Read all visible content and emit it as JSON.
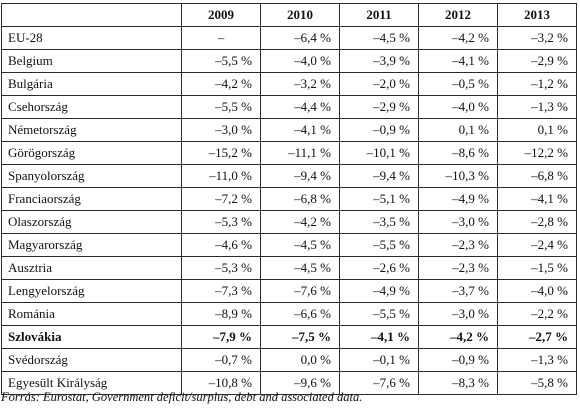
{
  "table": {
    "header": [
      "",
      "2009",
      "2010",
      "2011",
      "2012",
      "2013"
    ],
    "rows": [
      {
        "country": "EU-28",
        "values": [
          "–",
          "–6,4 %",
          "–4,5 %",
          "–4,2 %",
          "–3,2 %"
        ],
        "bold": false
      },
      {
        "country": "Belgium",
        "values": [
          "–5,5 %",
          "–4,0 %",
          "–3,9 %",
          "–4,1 %",
          "–2,9 %"
        ],
        "bold": false
      },
      {
        "country": "Bulgária",
        "values": [
          "–4,2 %",
          "–3,2 %",
          "–2,0 %",
          "–0,5 %",
          "–1,2 %"
        ],
        "bold": false
      },
      {
        "country": "Csehország",
        "values": [
          "–5,5 %",
          "–4,4 %",
          "–2,9 %",
          "–4,0 %",
          "–1,3 %"
        ],
        "bold": false
      },
      {
        "country": "Németország",
        "values": [
          "–3,0 %",
          "–4,1 %",
          "–0,9 %",
          "0,1 %",
          "0,1 %"
        ],
        "bold": false
      },
      {
        "country": "Görögország",
        "values": [
          "–15,2 %",
          "–11,1 %",
          "–10,1 %",
          "–8,6 %",
          "–12,2 %"
        ],
        "bold": false
      },
      {
        "country": "Spanyolország",
        "values": [
          "–11,0 %",
          "–9,4 %",
          "–9,4 %",
          "–10,3 %",
          "–6,8 %"
        ],
        "bold": false
      },
      {
        "country": "Franciaország",
        "values": [
          "–7,2 %",
          "–6,8 %",
          "–5,1 %",
          "–4,9 %",
          "–4,1 %"
        ],
        "bold": false
      },
      {
        "country": "Olaszország",
        "values": [
          "–5,3 %",
          "–4,2 %",
          "–3,5 %",
          "–3,0 %",
          "–2,8 %"
        ],
        "bold": false
      },
      {
        "country": "Magyarország",
        "values": [
          "–4,6 %",
          "–4,5 %",
          "–5,5 %",
          "–2,3 %",
          "–2,4 %"
        ],
        "bold": false
      },
      {
        "country": "Ausztria",
        "values": [
          "–5,3 %",
          "–4,5 %",
          "–2,6 %",
          "–2,3 %",
          "–1,5 %"
        ],
        "bold": false
      },
      {
        "country": "Lengyelország",
        "values": [
          "–7,3 %",
          "–7,6 %",
          "–4,9 %",
          "–3,7 %",
          "–4,0 %"
        ],
        "bold": false
      },
      {
        "country": "Románia",
        "values": [
          "–8,9 %",
          "–6,6 %",
          "–5,5 %",
          "–3,0 %",
          "–2,2 %"
        ],
        "bold": false
      },
      {
        "country": "Szlovákia",
        "values": [
          "–7,9 %",
          "–7,5 %",
          "–4,1 %",
          "–4,2 %",
          "–2,7 %"
        ],
        "bold": true
      },
      {
        "country": "Svédország",
        "values": [
          "–0,7 %",
          "0,0 %",
          "–0,1 %",
          "–0,9 %",
          "–1,3 %"
        ],
        "bold": false
      },
      {
        "country": "Egyesült Királyság",
        "values": [
          "–10,8 %",
          "–9,6 %",
          "–7,6 %",
          "–8,3 %",
          "–5,8 %"
        ],
        "bold": false
      }
    ]
  },
  "source": "Forrás: Eurostat, Government deficit/surplus, debt and associated data."
}
